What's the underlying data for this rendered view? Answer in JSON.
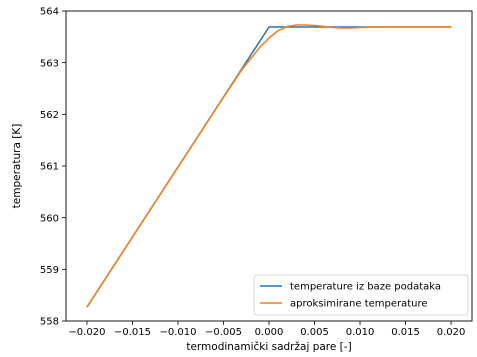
{
  "chart_data": {
    "type": "line",
    "title": "",
    "xlabel": "termodinamički sadržaj pare [-]",
    "ylabel": "temperatura [K]",
    "xlim": [
      -0.0223,
      0.0223
    ],
    "ylim": [
      558,
      564
    ],
    "xticks": [
      -0.02,
      -0.015,
      -0.01,
      -0.005,
      0.0,
      0.005,
      0.01,
      0.015,
      0.02
    ],
    "xtick_labels": [
      "−0.020",
      "−0.015",
      "−0.010",
      "−0.005",
      "0.000",
      "0.005",
      "0.010",
      "0.015",
      "0.020"
    ],
    "yticks": [
      558,
      559,
      560,
      561,
      562,
      563,
      564
    ],
    "ytick_labels": [
      "558",
      "559",
      "560",
      "561",
      "562",
      "563",
      "564"
    ],
    "grid": false,
    "legend_position": "lower-right",
    "series": [
      {
        "name": "temperature iz baze podataka",
        "color": "#1f77b4",
        "x": [
          -0.02,
          0.0,
          0.02
        ],
        "y": [
          558.27,
          563.69,
          563.69
        ]
      },
      {
        "name": "aproksimirane temperature",
        "color": "#ff7f0e",
        "x": [
          -0.02,
          -0.01,
          -0.005,
          -0.003,
          -0.002,
          -0.001,
          0.0,
          0.001,
          0.002,
          0.003,
          0.004,
          0.005,
          0.006,
          0.007,
          0.008,
          0.009,
          0.01,
          0.012,
          0.015,
          0.02
        ],
        "y": [
          558.27,
          560.98,
          562.33,
          562.86,
          563.08,
          563.3,
          563.48,
          563.62,
          563.7,
          563.73,
          563.73,
          563.72,
          563.7,
          563.68,
          563.67,
          563.67,
          563.68,
          563.69,
          563.69,
          563.69
        ]
      }
    ]
  }
}
